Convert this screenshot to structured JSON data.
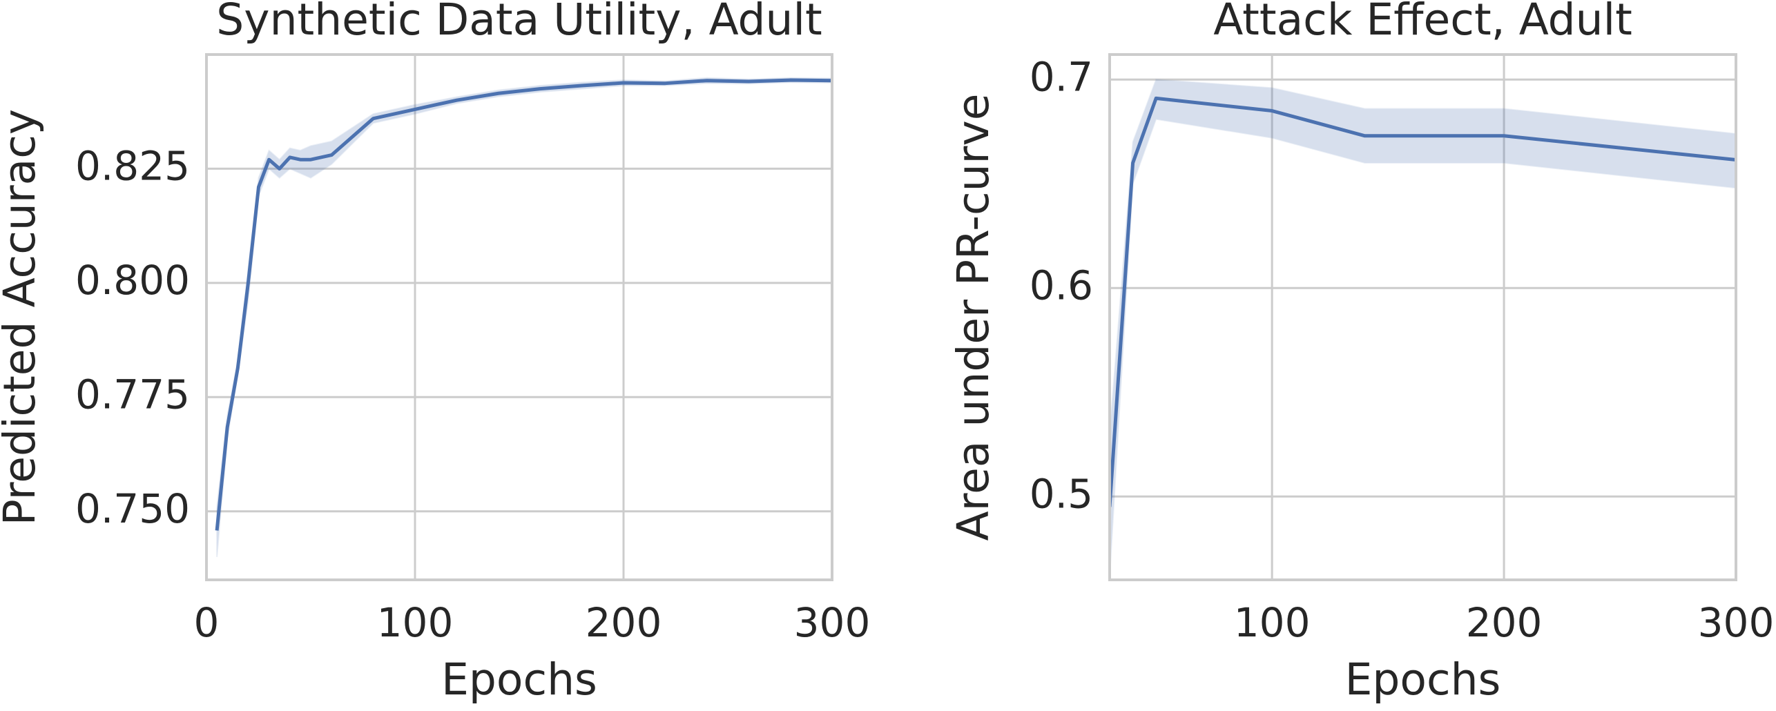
{
  "chart_data": [
    {
      "type": "line",
      "title": "Synthetic Data Utility, Adult",
      "xlabel": "Epochs",
      "ylabel": "Predicted Accuracy",
      "x": [
        5,
        10,
        15,
        20,
        25,
        30,
        35,
        40,
        45,
        50,
        60,
        80,
        100,
        120,
        140,
        160,
        180,
        200,
        220,
        240,
        260,
        280,
        300
      ],
      "series": [
        {
          "color": "#4c72b0",
          "values": [
            0.7458,
            0.7684,
            0.7813,
            0.8,
            0.821,
            0.827,
            0.825,
            0.8275,
            0.827,
            0.827,
            0.828,
            0.836,
            0.838,
            0.84,
            0.8415,
            0.8425,
            0.8432,
            0.8438,
            0.8437,
            0.8443,
            0.8441,
            0.8444,
            0.8443
          ],
          "lower": [
            0.74,
            0.766,
            0.78,
            0.796,
            0.819,
            0.825,
            0.823,
            0.825,
            0.824,
            0.823,
            0.826,
            0.835,
            0.837,
            0.8393,
            0.8408,
            0.8418,
            0.8425,
            0.8432,
            0.8432,
            0.8437,
            0.8436,
            0.8439,
            0.8438
          ],
          "upper": [
            0.751,
            0.771,
            0.783,
            0.803,
            0.823,
            0.829,
            0.827,
            0.8295,
            0.829,
            0.83,
            0.831,
            0.837,
            0.839,
            0.8407,
            0.8422,
            0.8432,
            0.8439,
            0.8444,
            0.8442,
            0.8449,
            0.8446,
            0.8449,
            0.8448
          ]
        }
      ],
      "xlim": [
        0,
        300
      ],
      "ylim": [
        0.735,
        0.85
      ],
      "xticks": [
        0,
        100,
        200,
        300
      ],
      "yticks": [
        {
          "value": 0.75,
          "label": "0.750"
        },
        0.775,
        {
          "value": 0.8,
          "label": "0.800"
        },
        0.825
      ],
      "grid": true
    },
    {
      "type": "line",
      "title": "Attack Effect, Adult",
      "xlabel": "Epochs",
      "ylabel": "Area under PR-curve",
      "x": [
        30,
        40,
        50,
        100,
        140,
        200,
        300
      ],
      "series": [
        {
          "color": "#4c72b0",
          "values": [
            0.495,
            0.66,
            0.691,
            0.685,
            0.673,
            0.673,
            0.6615
          ],
          "lower": [
            0.462,
            0.65,
            0.681,
            0.672,
            0.66,
            0.66,
            0.648
          ],
          "upper": [
            0.53,
            0.67,
            0.7,
            0.696,
            0.686,
            0.686,
            0.674
          ]
        }
      ],
      "xlim": [
        30,
        300
      ],
      "ylim": [
        0.46,
        0.712
      ],
      "xticks": [
        100,
        200,
        300
      ],
      "yticks": [
        0.5,
        0.6,
        0.7
      ],
      "grid": true
    }
  ]
}
